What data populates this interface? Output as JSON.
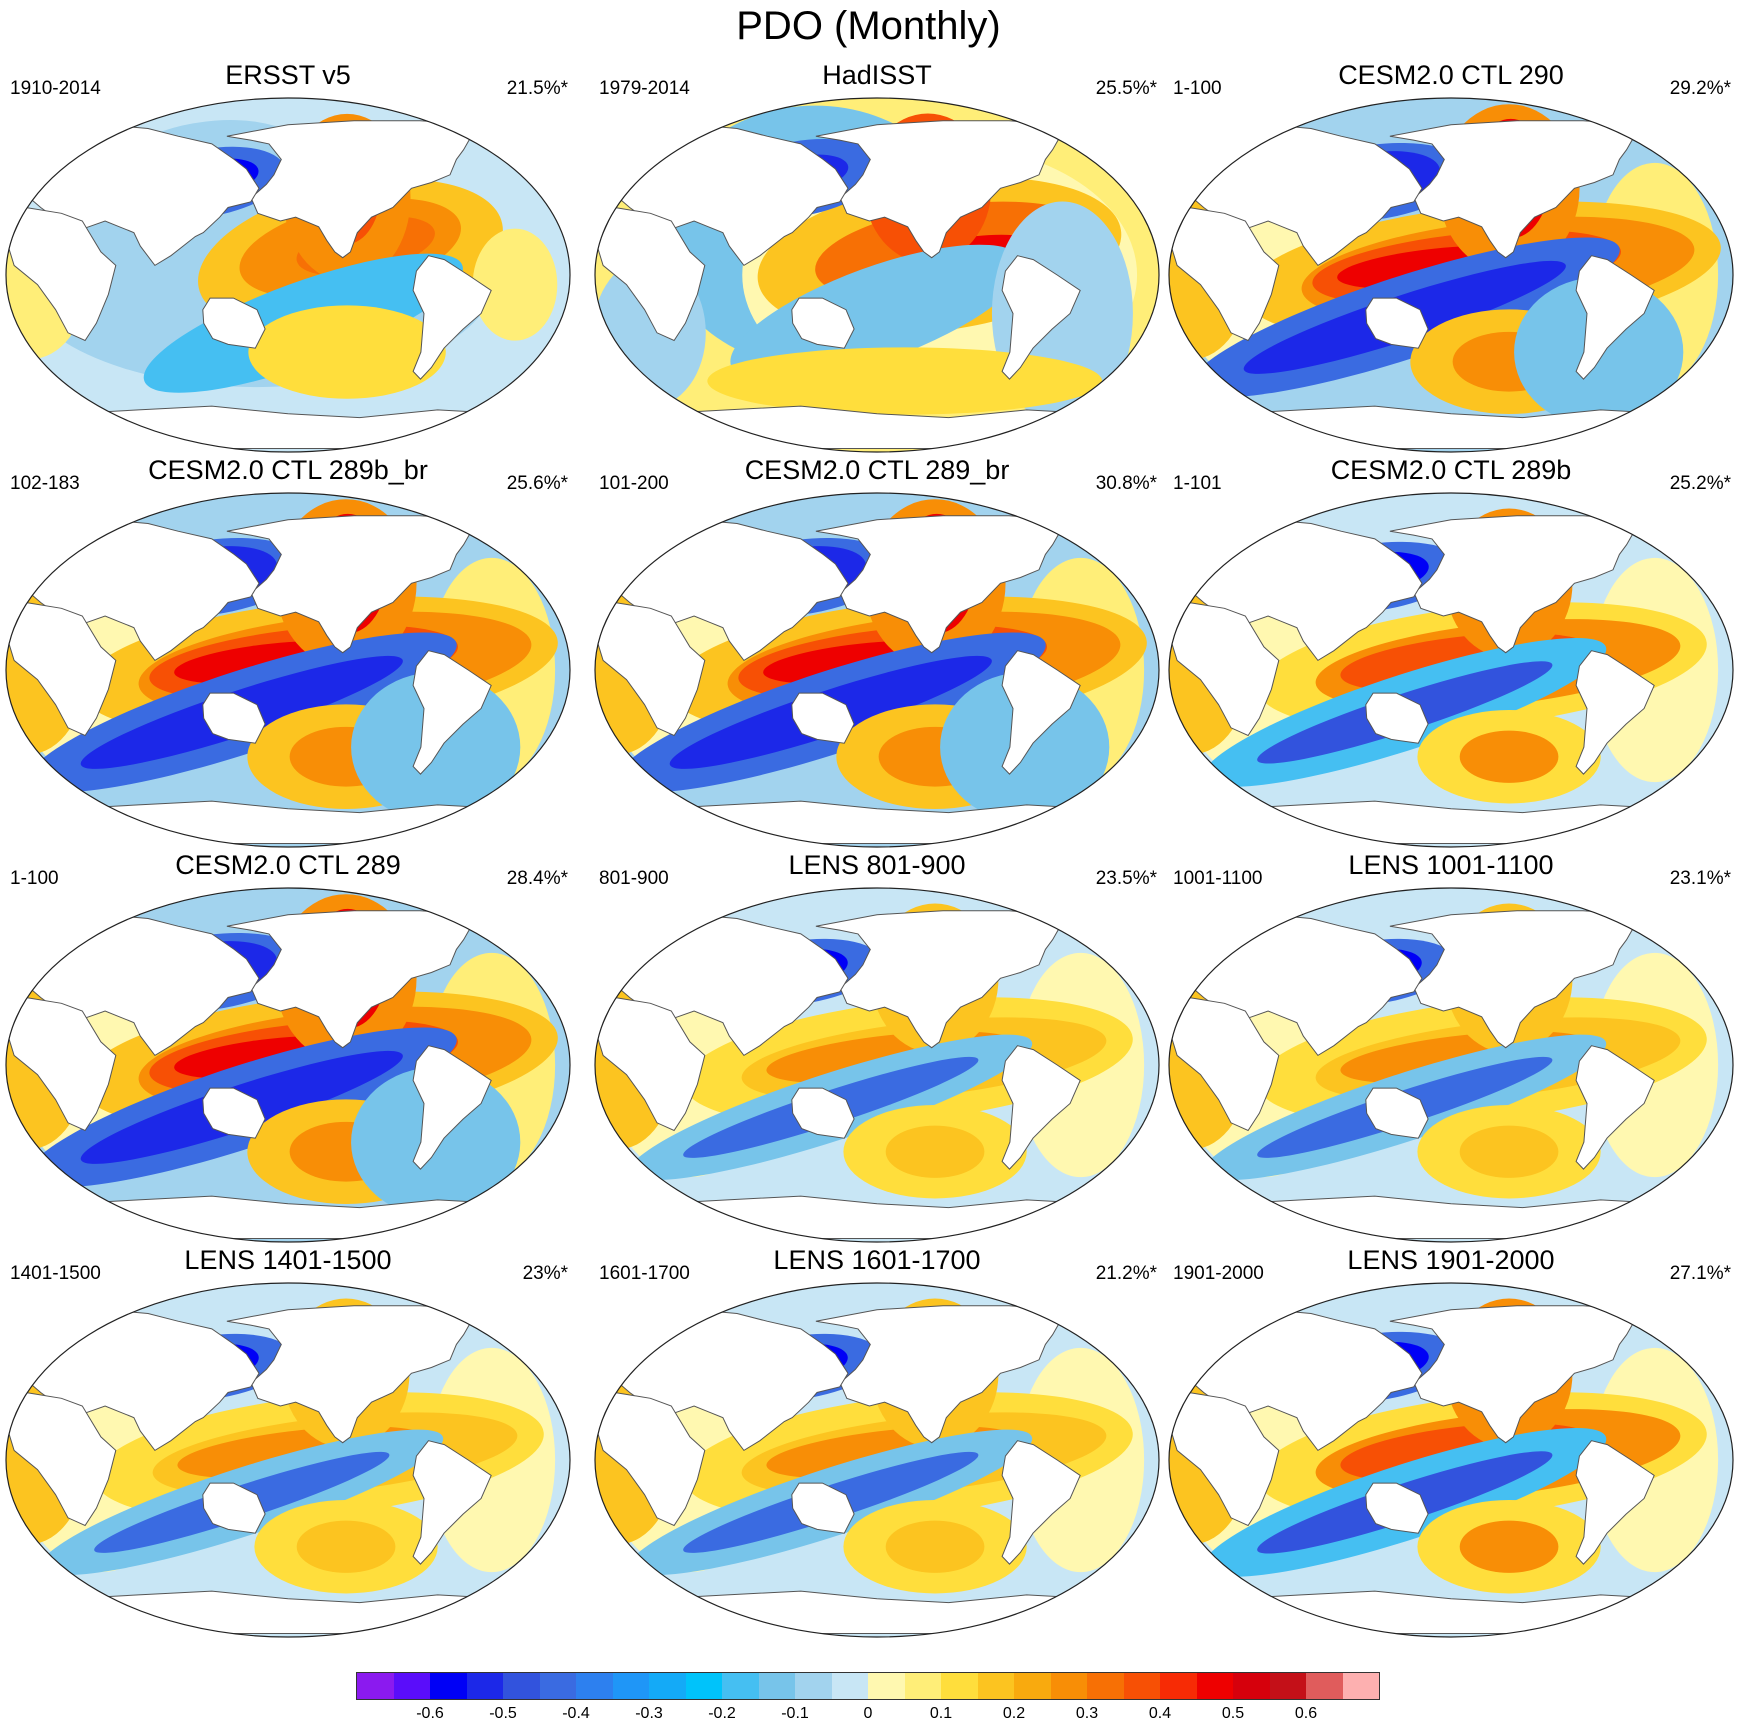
{
  "title": "PDO (Monthly)",
  "panels": [
    {
      "name": "ERSST v5",
      "period": "1910-2014",
      "pct": "21.5%*",
      "style": "obs1"
    },
    {
      "name": "HadISST",
      "period": "1979-2014",
      "pct": "25.5%*",
      "style": "obs2"
    },
    {
      "name": "CESM2.0 CTL 290",
      "period": "1-100",
      "pct": "29.2%*",
      "style": "model_strong"
    },
    {
      "name": "CESM2.0 CTL 289b_br",
      "period": "102-183",
      "pct": "25.6%*",
      "style": "model_strong"
    },
    {
      "name": "CESM2.0 CTL 289_br",
      "period": "101-200",
      "pct": "30.8%*",
      "style": "model_strong"
    },
    {
      "name": "CESM2.0 CTL 289b",
      "period": "1-101",
      "pct": "25.2%*",
      "style": "model_mid"
    },
    {
      "name": "CESM2.0 CTL 289",
      "period": "1-100",
      "pct": "28.4%*",
      "style": "model_strong"
    },
    {
      "name": "LENS 801-900",
      "period": "801-900",
      "pct": "23.5%*",
      "style": "lens"
    },
    {
      "name": "LENS 1001-1100",
      "period": "1001-1100",
      "pct": "23.1%*",
      "style": "lens"
    },
    {
      "name": "LENS 1401-1500",
      "period": "1401-1500",
      "pct": "23%*",
      "style": "lens"
    },
    {
      "name": "LENS 1601-1700",
      "period": "1601-1700",
      "pct": "21.2%*",
      "style": "lens"
    },
    {
      "name": "LENS 1901-2000",
      "period": "1901-2000",
      "pct": "27.1%*",
      "style": "model_mid"
    }
  ],
  "colorbar": {
    "colors": [
      "#8b1aef",
      "#5a0dfa",
      "#0000f6",
      "#1c28e8",
      "#3253dd",
      "#3a6be1",
      "#2d80ef",
      "#1f96f7",
      "#14aaf7",
      "#00c3fa",
      "#45bff2",
      "#77c4ea",
      "#a2d3ee",
      "#c8e6f5",
      "#fff8b0",
      "#ffee78",
      "#ffde3c",
      "#fcc420",
      "#f9aa0e",
      "#f88e06",
      "#f77005",
      "#f75005",
      "#f72b05",
      "#ee0000",
      "#d6000c",
      "#c41018",
      "#e05c5c",
      "#fdb0b0"
    ],
    "labels": [
      {
        "text": "-0.6",
        "pos": 2
      },
      {
        "text": "-0.5",
        "pos": 4
      },
      {
        "text": "-0.4",
        "pos": 6
      },
      {
        "text": "-0.3",
        "pos": 8
      },
      {
        "text": "-0.2",
        "pos": 10
      },
      {
        "text": "-0.1",
        "pos": 12
      },
      {
        "text": "0",
        "pos": 14
      },
      {
        "text": "0.1",
        "pos": 16
      },
      {
        "text": "0.2",
        "pos": 18
      },
      {
        "text": "0.3",
        "pos": 20
      },
      {
        "text": "0.4",
        "pos": 22
      },
      {
        "text": "0.5",
        "pos": 24
      },
      {
        "text": "0.6",
        "pos": 26
      }
    ]
  }
}
